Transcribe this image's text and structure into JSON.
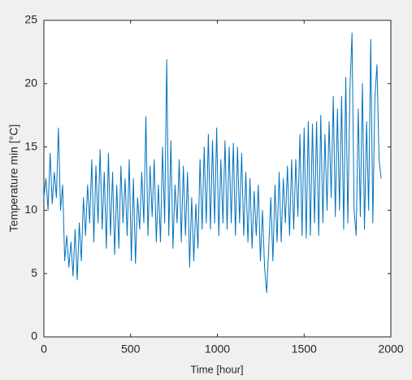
{
  "chart_data": {
    "type": "line",
    "xlabel": "Time [hour]",
    "ylabel": "Temperature min [°C]",
    "x": [
      0,
      12,
      24,
      36,
      48,
      60,
      72,
      84,
      96,
      108,
      120,
      132,
      144,
      156,
      168,
      180,
      192,
      204,
      216,
      228,
      240,
      252,
      264,
      276,
      288,
      300,
      312,
      324,
      336,
      348,
      360,
      372,
      384,
      396,
      408,
      420,
      432,
      444,
      456,
      468,
      480,
      492,
      504,
      516,
      528,
      540,
      552,
      564,
      576,
      588,
      600,
      612,
      624,
      636,
      648,
      660,
      672,
      684,
      696,
      708,
      720,
      732,
      744,
      756,
      768,
      780,
      792,
      804,
      816,
      828,
      840,
      852,
      864,
      876,
      888,
      900,
      912,
      924,
      936,
      948,
      960,
      972,
      984,
      996,
      1008,
      1020,
      1032,
      1044,
      1056,
      1068,
      1080,
      1092,
      1104,
      1116,
      1128,
      1140,
      1152,
      1164,
      1176,
      1188,
      1200,
      1212,
      1224,
      1236,
      1248,
      1260,
      1272,
      1284,
      1296,
      1308,
      1320,
      1332,
      1344,
      1356,
      1368,
      1380,
      1392,
      1404,
      1416,
      1428,
      1440,
      1452,
      1464,
      1476,
      1488,
      1500,
      1512,
      1524,
      1536,
      1548,
      1560,
      1572,
      1584,
      1596,
      1608,
      1620,
      1632,
      1644,
      1656,
      1668,
      1680,
      1692,
      1704,
      1716,
      1728,
      1740,
      1752,
      1764,
      1776,
      1788,
      1800,
      1812,
      1824,
      1836,
      1848,
      1860,
      1872,
      1884,
      1896,
      1908,
      1920,
      1932,
      1944
    ],
    "series": [
      {
        "color": "#0072bd",
        "values": [
          11,
          12.5,
          10,
          14.5,
          10.5,
          13,
          11,
          16.5,
          10,
          12,
          6,
          8,
          5.5,
          7.5,
          4.8,
          8.5,
          4.5,
          9,
          6,
          11,
          8,
          12,
          9,
          14,
          7.5,
          13.5,
          9,
          14.8,
          8.5,
          13,
          7,
          14.5,
          8,
          13,
          6.5,
          12,
          7,
          13.5,
          9,
          12.5,
          8,
          14,
          6,
          12.5,
          5.8,
          11,
          8.5,
          13,
          9,
          17.4,
          8,
          13.5,
          9.5,
          14,
          7.5,
          12,
          7.5,
          15,
          9,
          21.9,
          8,
          15.5,
          7,
          12,
          9,
          14,
          7.5,
          13.5,
          8,
          13,
          5.5,
          11,
          6,
          10.5,
          7,
          14,
          8.5,
          15,
          9,
          16,
          8.5,
          15.5,
          9,
          16.5,
          8,
          14,
          9,
          15.5,
          8.5,
          15,
          9,
          15.3,
          8,
          15,
          9,
          14.5,
          8,
          13,
          7.5,
          12.5,
          7,
          11.5,
          8,
          12,
          6,
          10,
          5.5,
          3.5,
          7,
          11,
          6,
          12,
          7.5,
          13,
          7.5,
          12.5,
          9,
          13.5,
          8,
          14,
          8.5,
          14,
          9.5,
          16,
          8,
          16.5,
          7.8,
          17,
          8,
          16.8,
          9,
          17,
          8,
          17.5,
          9,
          16,
          10,
          17,
          11,
          19,
          9.5,
          18,
          10,
          19,
          8.5,
          20.5,
          9,
          19.5,
          24,
          10,
          8,
          18,
          9.5,
          20,
          8.5,
          17,
          10,
          23.5,
          9,
          19,
          21.5,
          14,
          12.5
        ]
      }
    ],
    "xlim": [
      0,
      2000
    ],
    "xticks": [
      0,
      500,
      1000,
      1500,
      2000
    ],
    "ylim": [
      0,
      25
    ],
    "yticks": [
      0,
      5,
      10,
      15,
      20,
      25
    ]
  }
}
